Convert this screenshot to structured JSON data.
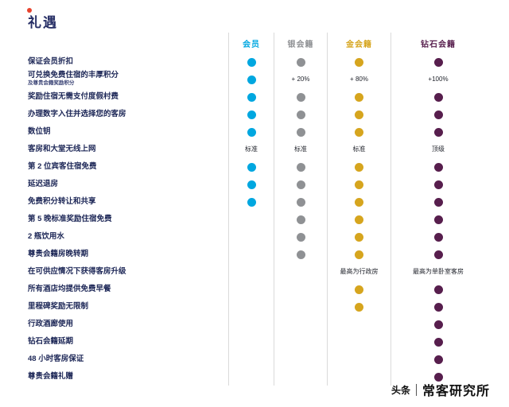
{
  "title": "礼遇",
  "chart_data": {
    "type": "table",
    "title": "礼遇",
    "dot_meaning": "benefit included for this tier",
    "columns": [
      {
        "label": "会员",
        "color": "#00a7e0"
      },
      {
        "label": "银会籍",
        "color": "#8f9194"
      },
      {
        "label": "金会籍",
        "color": "#d6a51e"
      },
      {
        "label": "钻石会籍",
        "color": "#571e4d"
      }
    ],
    "rows": [
      {
        "label": "保证会员折扣",
        "cells": [
          "dot",
          "dot",
          "dot",
          "dot"
        ]
      },
      {
        "label": "可兑换免费住宿的丰厚积分",
        "sublabel": "及尊贵会籍奖励积分",
        "cells": [
          "dot",
          "+ 20%",
          "+ 80%",
          "+100%"
        ]
      },
      {
        "label": "奖励住宿无需支付度假村费",
        "cells": [
          "dot",
          "dot",
          "dot",
          "dot"
        ]
      },
      {
        "label": "办理数字入住并选择您的客房",
        "cells": [
          "dot",
          "dot",
          "dot",
          "dot"
        ]
      },
      {
        "label": "数位钥",
        "cells": [
          "dot",
          "dot",
          "dot",
          "dot"
        ]
      },
      {
        "label": "客房和大堂无线上网",
        "cells": [
          "标准",
          "标准",
          "标准",
          "顶级"
        ]
      },
      {
        "label": "第 2 位宾客住宿免费",
        "cells": [
          "dot",
          "dot",
          "dot",
          "dot"
        ]
      },
      {
        "label": "延迟退房",
        "cells": [
          "dot",
          "dot",
          "dot",
          "dot"
        ]
      },
      {
        "label": "免费积分转让和共享",
        "cells": [
          "dot",
          "dot",
          "dot",
          "dot"
        ]
      },
      {
        "label": "第 5 晚标准奖励住宿免费",
        "cells": [
          "",
          "dot",
          "dot",
          "dot"
        ]
      },
      {
        "label": "2 瓶饮用水",
        "cells": [
          "",
          "dot",
          "dot",
          "dot"
        ]
      },
      {
        "label": "尊贵会籍房晚转期",
        "cells": [
          "",
          "dot",
          "dot",
          "dot"
        ]
      },
      {
        "label": "在可供应情况下获得客房升级",
        "cells": [
          "",
          "",
          "最高为行政房",
          "最高为单卧室客房"
        ]
      },
      {
        "label": "所有酒店均提供免费早餐",
        "cells": [
          "",
          "",
          "dot",
          "dot"
        ]
      },
      {
        "label": "里程碑奖励无限制",
        "cells": [
          "",
          "",
          "dot",
          "dot"
        ]
      },
      {
        "label": "行政酒廊使用",
        "cells": [
          "",
          "",
          "",
          "dot"
        ]
      },
      {
        "label": "钻石会籍延期",
        "cells": [
          "",
          "",
          "",
          "dot"
        ]
      },
      {
        "label": "48 小时客房保证",
        "cells": [
          "",
          "",
          "",
          "dot"
        ]
      },
      {
        "label": "尊贵会籍礼赠",
        "cells": [
          "",
          "",
          "",
          "dot"
        ]
      }
    ]
  },
  "watermark": {
    "brand": "头条",
    "name": "常客研究所"
  },
  "colors": {
    "title": "#272f66",
    "row_label": "#1d2757",
    "grid_line": "#dadada",
    "brand_dot": "#e8432d"
  }
}
